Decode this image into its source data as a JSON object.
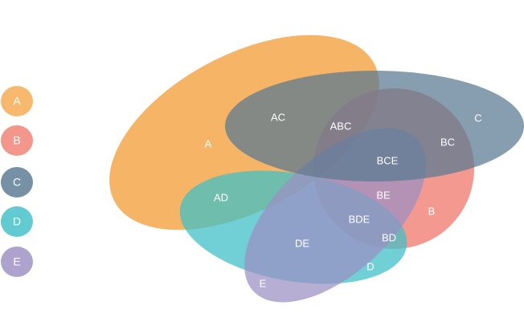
{
  "diagram": {
    "type": "venn",
    "sets": [
      {
        "key": "A",
        "name": "A",
        "color": "#f5a94d"
      },
      {
        "key": "B",
        "name": "B",
        "color": "#f08073"
      },
      {
        "key": "C",
        "name": "C",
        "color": "#587892"
      },
      {
        "key": "D",
        "name": "D",
        "color": "#3fbfc7"
      },
      {
        "key": "E",
        "name": "E",
        "color": "#9b8fc3"
      }
    ],
    "regions": [
      {
        "key": "A",
        "label": "A"
      },
      {
        "key": "AC",
        "label": "AC"
      },
      {
        "key": "ABC",
        "label": "ABC"
      },
      {
        "key": "C",
        "label": "C"
      },
      {
        "key": "BC",
        "label": "BC"
      },
      {
        "key": "BCE",
        "label": "BCE"
      },
      {
        "key": "AD",
        "label": "AD"
      },
      {
        "key": "BE",
        "label": "BE"
      },
      {
        "key": "B",
        "label": "B"
      },
      {
        "key": "BDE",
        "label": "BDE"
      },
      {
        "key": "BD",
        "label": "BD"
      },
      {
        "key": "DE",
        "label": "DE"
      },
      {
        "key": "D",
        "label": "D"
      },
      {
        "key": "E",
        "label": "E"
      }
    ]
  }
}
